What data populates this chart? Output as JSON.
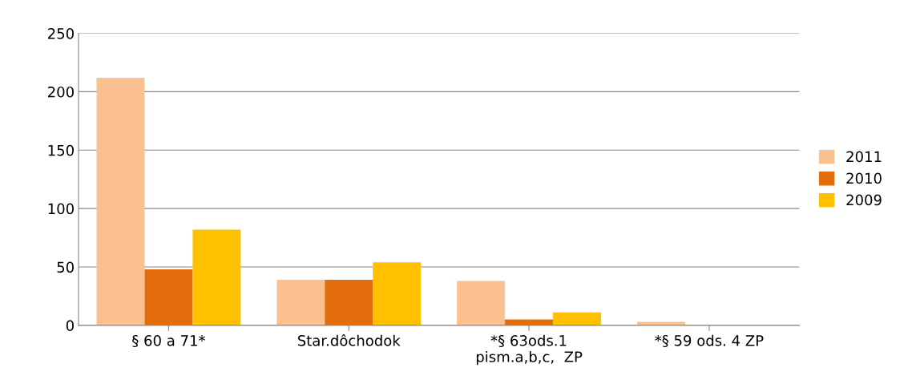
{
  "chart_data": {
    "type": "bar",
    "categories": [
      "§ 60 a 71*",
      "Star.dôchodok",
      "*§ 63ods.1\npism.a,b,c,  ZP",
      "*§ 59 ods. 4 ZP"
    ],
    "series": [
      {
        "name": "2011",
        "color": "#fac090",
        "values": [
          212,
          39,
          38,
          3
        ]
      },
      {
        "name": "2010",
        "color": "#e46c0a",
        "values": [
          48,
          39,
          5,
          0
        ]
      },
      {
        "name": "2009",
        "color": "#ffc000",
        "values": [
          82,
          54,
          11,
          0
        ]
      }
    ],
    "ylim": [
      0,
      250
    ],
    "yticks": [
      0,
      50,
      100,
      150,
      200,
      250
    ],
    "grid": "y",
    "legend": "right"
  }
}
